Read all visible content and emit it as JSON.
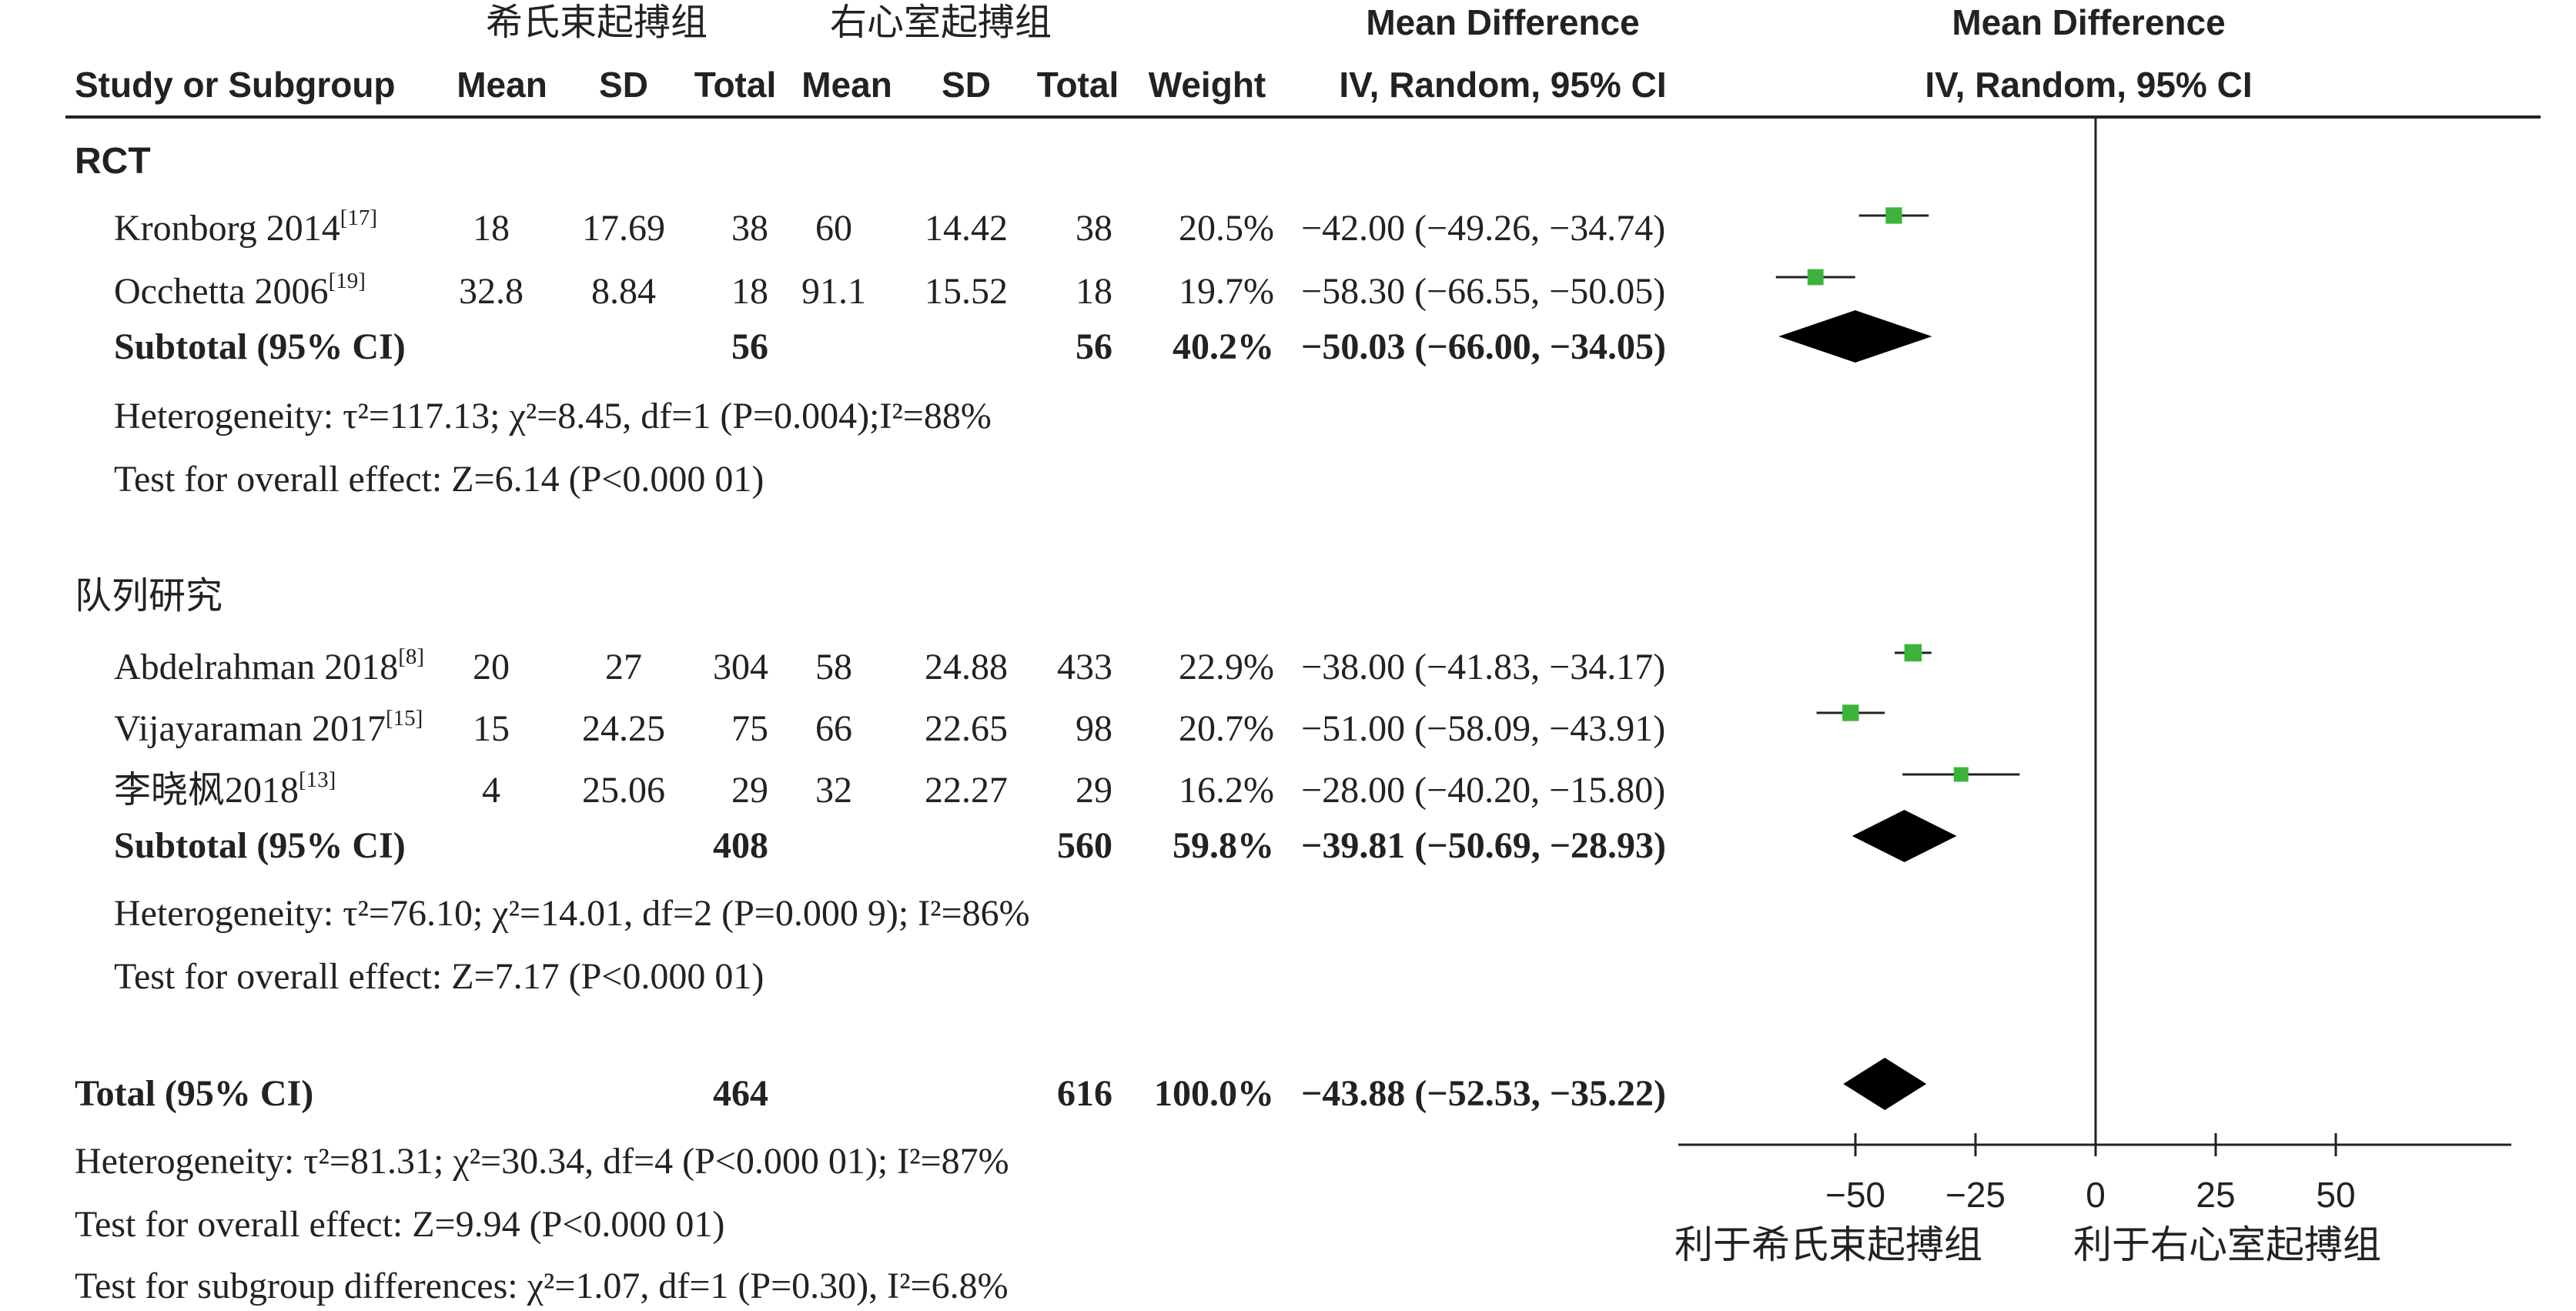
{
  "headers": {
    "group1": "希氏束起搏组",
    "group2": "右心室起搏组",
    "md_top": "Mean Difference",
    "md_sub": "IV, Random, 95% CI",
    "plot_top": "Mean Difference",
    "plot_sub": "IV, Random, 95% CI",
    "study": "Study or Subgroup",
    "mean1": "Mean",
    "sd1": "SD",
    "total1": "Total",
    "mean2": "Mean",
    "sd2": "SD",
    "total2": "Total",
    "weight": "Weight"
  },
  "subgroups": [
    {
      "title": "RCT",
      "studies": [
        {
          "name": "Kronborg 2014",
          "ref": "[17]",
          "m1": "18",
          "sd1": "17.69",
          "n1": "38",
          "m2": "60",
          "sd2": "14.42",
          "n2": "38",
          "w": "20.5%",
          "ci": "−42.00 (−49.26, −34.74)"
        },
        {
          "name": "Occhetta 2006",
          "ref": "[19]",
          "m1": "32.8",
          "sd1": "8.84",
          "n1": "18",
          "m2": "91.1",
          "sd2": "15.52",
          "n2": "18",
          "w": "19.7%",
          "ci": "−58.30 (−66.55, −50.05)"
        }
      ],
      "subtotal": {
        "label": "Subtotal (95% CI)",
        "n1": "56",
        "n2": "56",
        "w": "40.2%",
        "ci": "−50.03 (−66.00, −34.05)"
      },
      "heterogeneity": "Heterogeneity: τ²=117.13; χ²=8.45, df=1 (P=0.004);I²=88%",
      "overall": "Test for overall effect: Z=6.14 (P<0.000 01)"
    },
    {
      "title": "队列研究",
      "studies": [
        {
          "name": "Abdelrahman 2018",
          "ref": "[8]",
          "m1": "20",
          "sd1": "27",
          "n1": "304",
          "m2": "58",
          "sd2": "24.88",
          "n2": "433",
          "w": "22.9%",
          "ci": "−38.00 (−41.83, −34.17)"
        },
        {
          "name": "Vijayaraman 2017",
          "ref": "[15]",
          "m1": "15",
          "sd1": "24.25",
          "n1": "75",
          "m2": "66",
          "sd2": "22.65",
          "n2": "98",
          "w": "20.7%",
          "ci": "−51.00 (−58.09, −43.91)"
        },
        {
          "name": "李晓枫2018",
          "ref": "[13]",
          "m1": "4",
          "sd1": "25.06",
          "n1": "29",
          "m2": "32",
          "sd2": "22.27",
          "n2": "29",
          "w": "16.2%",
          "ci": "−28.00 (−40.20, −15.80)"
        }
      ],
      "subtotal": {
        "label": "Subtotal (95% CI)",
        "n1": "408",
        "n2": "560",
        "w": "59.8%",
        "ci": "−39.81 (−50.69, −28.93)"
      },
      "heterogeneity": "Heterogeneity: τ²=76.10; χ²=14.01, df=2 (P=0.000 9); I²=86%",
      "overall": "Test for overall effect: Z=7.17 (P<0.000 01)"
    }
  ],
  "total": {
    "label": "Total (95% CI)",
    "n1": "464",
    "n2": "616",
    "w": "100.0%",
    "ci": "−43.88 (−52.53, −35.22)"
  },
  "footer": [
    "Heterogeneity: τ²=81.31; χ²=30.34, df=4 (P<0.000 01); I²=87%",
    "Test for overall effect: Z=9.94 (P<0.000 01)",
    "Test for subgroup differences: χ²=1.07, df=1 (P=0.30), I²=6.8%"
  ],
  "axis_labels": {
    "left": "利于希氏束起搏组",
    "right": "利于右心室起搏组"
  },
  "colors": {
    "marker": "#3cb43c",
    "diamond": "#000000",
    "text": "#222222"
  },
  "chart_data": {
    "type": "forest",
    "xlim": [
      -100,
      100
    ],
    "ticks": [
      -50,
      -25,
      0,
      25,
      50
    ],
    "studies": [
      {
        "name": "Kronborg 2014",
        "subgroup": "RCT",
        "md": -42.0,
        "lo": -49.26,
        "hi": -34.74,
        "weight": 20.5
      },
      {
        "name": "Occhetta 2006",
        "subgroup": "RCT",
        "md": -58.3,
        "lo": -66.55,
        "hi": -50.05,
        "weight": 19.7
      },
      {
        "name": "Abdelrahman 2018",
        "subgroup": "队列研究",
        "md": -38.0,
        "lo": -41.83,
        "hi": -34.17,
        "weight": 22.9
      },
      {
        "name": "Vijayaraman 2017",
        "subgroup": "队列研究",
        "md": -51.0,
        "lo": -58.09,
        "hi": -43.91,
        "weight": 20.7
      },
      {
        "name": "李晓枫2018",
        "subgroup": "队列研究",
        "md": -28.0,
        "lo": -40.2,
        "hi": -15.8,
        "weight": 16.2
      }
    ],
    "pooled": [
      {
        "name": "RCT subtotal",
        "md": -50.03,
        "lo": -66.0,
        "hi": -34.05
      },
      {
        "name": "队列研究 subtotal",
        "md": -39.81,
        "lo": -50.69,
        "hi": -28.93
      },
      {
        "name": "Total",
        "md": -43.88,
        "lo": -52.53,
        "hi": -35.22
      }
    ]
  }
}
